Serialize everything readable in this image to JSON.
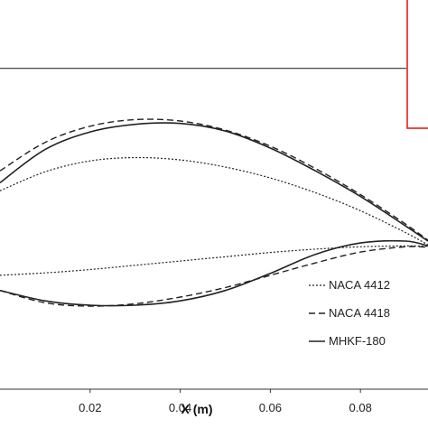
{
  "chart_data": {
    "type": "line",
    "title": "",
    "xlabel": "X (m)",
    "ylabel": "",
    "xlim": [
      0.0,
      0.095
    ],
    "ylim": [
      -0.028,
      0.054
    ],
    "x_ticks": [
      "0.02",
      "0.04",
      "0.06",
      "0.08"
    ],
    "x_tick_values": [
      0.02,
      0.04,
      0.06,
      0.08
    ],
    "grid": false,
    "legend_position": "bottom-right",
    "reference_line_y": 0.0396,
    "series": [
      {
        "name": "NACA 4412",
        "dash": "dotted",
        "upper": {
          "x": [
            0.0,
            0.01,
            0.02,
            0.03,
            0.04,
            0.05,
            0.06,
            0.07,
            0.08,
            0.09,
            0.095
          ],
          "y": [
            0.0138,
            0.0178,
            0.0201,
            0.0208,
            0.0203,
            0.0188,
            0.0165,
            0.0134,
            0.0096,
            0.005,
            0.0024
          ]
        },
        "lower": {
          "x": [
            0.0,
            0.01,
            0.02,
            0.03,
            0.04,
            0.05,
            0.06,
            0.07,
            0.08,
            0.09,
            0.095
          ],
          "y": [
            -0.004,
            -0.0035,
            -0.0028,
            -0.0019,
            -0.001,
            -0.0001,
            0.0008,
            0.0015,
            0.002,
            0.0022,
            0.0021
          ]
        }
      },
      {
        "name": "NACA 4418",
        "dash": "dashed",
        "upper": {
          "x": [
            0.0,
            0.01,
            0.02,
            0.03,
            0.04,
            0.05,
            0.06,
            0.07,
            0.08,
            0.09,
            0.095
          ],
          "y": [
            0.018,
            0.024,
            0.0274,
            0.0288,
            0.0285,
            0.0266,
            0.0232,
            0.0185,
            0.013,
            0.0068,
            0.0034
          ]
        },
        "lower": {
          "x": [
            0.0,
            0.01,
            0.02,
            0.03,
            0.04,
            0.05,
            0.06,
            0.07,
            0.08,
            0.09,
            0.095
          ],
          "y": [
            -0.0072,
            -0.0098,
            -0.0105,
            -0.01,
            -0.0086,
            -0.0066,
            -0.004,
            -0.0014,
            0.0009,
            0.002,
            0.0019
          ]
        }
      },
      {
        "name": "MHKF-180",
        "dash": "solid",
        "upper": {
          "x": [
            0.0,
            0.01,
            0.02,
            0.03,
            0.04,
            0.05,
            0.06,
            0.07,
            0.08,
            0.09,
            0.095
          ],
          "y": [
            0.0155,
            0.0225,
            0.0262,
            0.0278,
            0.028,
            0.0264,
            0.0228,
            0.018,
            0.0126,
            0.0064,
            0.0032
          ]
        },
        "lower": {
          "x": [
            0.0,
            0.01,
            0.02,
            0.03,
            0.04,
            0.05,
            0.06,
            0.07,
            0.08,
            0.09,
            0.095
          ],
          "y": [
            -0.0072,
            -0.0094,
            -0.0103,
            -0.0103,
            -0.0094,
            -0.0072,
            -0.0036,
            0.0004,
            0.0028,
            0.0032,
            0.0022
          ]
        }
      }
    ]
  },
  "colors": {
    "line": "#222222",
    "axis": "#333333",
    "highlight_box": "#e02020"
  }
}
